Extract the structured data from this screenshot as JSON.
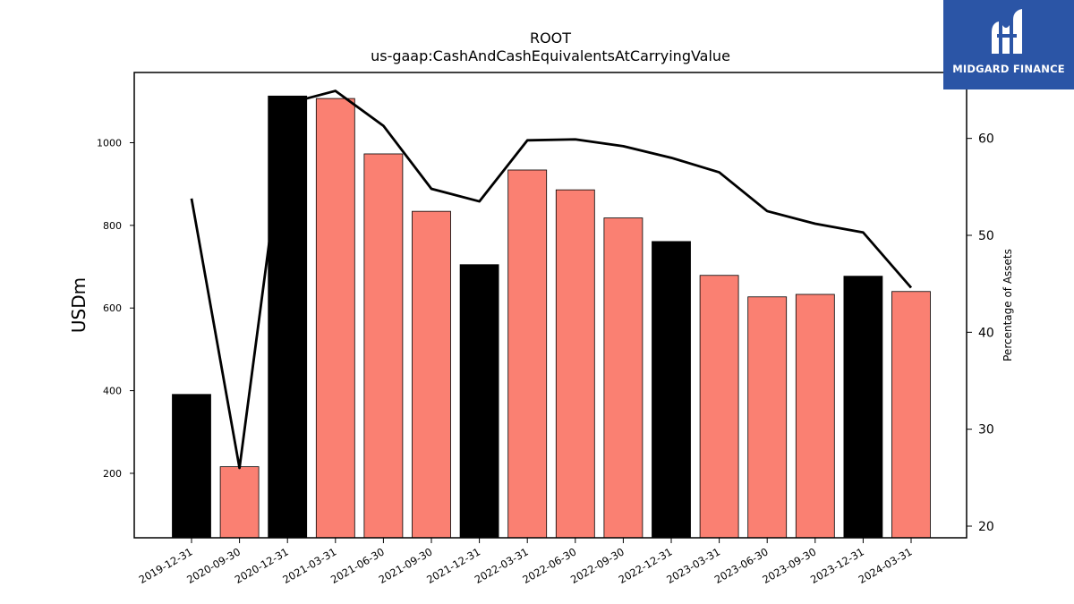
{
  "chart_data": {
    "type": "bar",
    "title": "ROOT",
    "subtitle": "us-gaap:CashAndCashEquivalentsAtCarryingValue",
    "ylabel": "USDm",
    "y2label": "Percentage of Assets",
    "categories": [
      "2019-12-31",
      "2020-09-30",
      "2020-12-31",
      "2021-03-31",
      "2021-06-30",
      "2021-09-30",
      "2021-12-31",
      "2022-03-31",
      "2022-06-30",
      "2022-09-30",
      "2022-12-31",
      "2023-03-31",
      "2023-06-30",
      "2023-09-30",
      "2023-12-31",
      "2024-03-31"
    ],
    "series": [
      {
        "type": "bar",
        "values": [
          391,
          216,
          1113,
          1107,
          973,
          834,
          705,
          934,
          886,
          818,
          761,
          679,
          627,
          633,
          677,
          640
        ],
        "colors": [
          "#000000",
          "#fa8072",
          "#000000",
          "#fa8072",
          "#fa8072",
          "#fa8072",
          "#000000",
          "#fa8072",
          "#fa8072",
          "#fa8072",
          "#000000",
          "#fa8072",
          "#fa8072",
          "#fa8072",
          "#000000",
          "#fa8072"
        ]
      },
      {
        "type": "line",
        "axis": "right",
        "values": [
          53.8,
          26.0,
          63.6,
          64.9,
          61.3,
          54.8,
          53.5,
          59.8,
          59.9,
          59.2,
          58.0,
          56.5,
          52.5,
          51.2,
          50.3,
          44.6
        ],
        "color": "#000000"
      }
    ],
    "ylim": [
      44,
      1170
    ],
    "y2lim": [
      18.8,
      66.8
    ],
    "yticks": [
      200,
      400,
      600,
      800,
      1000
    ],
    "y2ticks": [
      20,
      30,
      40,
      50,
      60
    ],
    "grid": false,
    "legend": "none"
  },
  "logo": {
    "name": "MIDGARD FINANCE",
    "background": "#2b55a6"
  }
}
